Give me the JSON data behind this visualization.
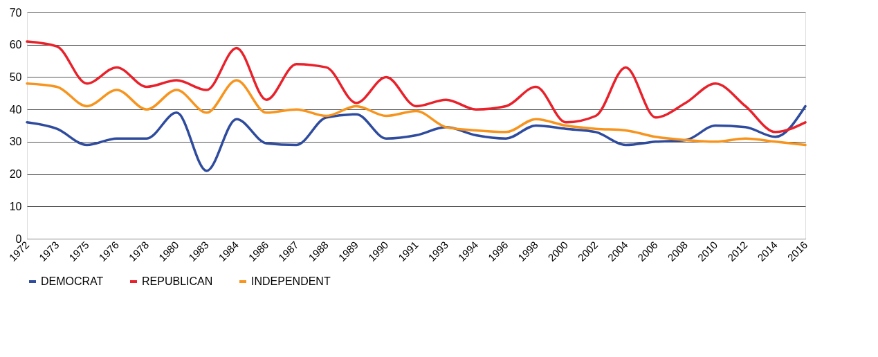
{
  "chart_data": {
    "type": "line",
    "categories": [
      "1972",
      "1973",
      "1975",
      "1976",
      "1978",
      "1980",
      "1983",
      "1984",
      "1986",
      "1987",
      "1988",
      "1989",
      "1990",
      "1991",
      "1993",
      "1994",
      "1996",
      "1998",
      "2000",
      "2002",
      "2004",
      "2006",
      "2008",
      "2010",
      "2012",
      "2014",
      "2016"
    ],
    "series": [
      {
        "name": "DEMOCRAT",
        "color": "#2e4b9e",
        "values": [
          36,
          34,
          29,
          31,
          31,
          39,
          21,
          37,
          29.5,
          29,
          37.5,
          38.5,
          31,
          32,
          34.5,
          32,
          31,
          35,
          34,
          33,
          29,
          30,
          30.5,
          35,
          34.5,
          31.5,
          41
        ]
      },
      {
        "name": "REPUBLICAN",
        "color": "#e8212a",
        "values": [
          61,
          59.5,
          48,
          53,
          47,
          49,
          46,
          59,
          43,
          54,
          53,
          42,
          50,
          41,
          43,
          40,
          41,
          47,
          36,
          38,
          53,
          37.5,
          42,
          48,
          41,
          33,
          36
        ]
      },
      {
        "name": "INDEPENDENT",
        "color": "#f7941d",
        "values": [
          48,
          47,
          41,
          46,
          40,
          46,
          39,
          49,
          39,
          40,
          38,
          41,
          38,
          39.5,
          34.5,
          33.5,
          33,
          37,
          35,
          34,
          33.5,
          31.5,
          30.5,
          30,
          31,
          30,
          29
        ]
      }
    ],
    "ylim": [
      0,
      70
    ],
    "yticks": [
      0,
      10,
      20,
      30,
      40,
      50,
      60,
      70
    ],
    "grid": "y",
    "legend": "bottom",
    "marker": "none",
    "line_style": "solid"
  }
}
